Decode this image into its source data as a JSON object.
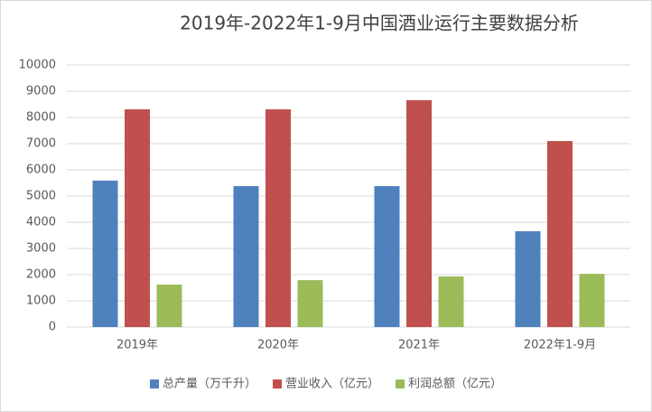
{
  "chart_data": {
    "type": "bar",
    "title": "2019年-2022年1-9月中国酒业运行主要数据分析",
    "categories": [
      "2019年",
      "2020年",
      "2021年",
      "2022年1-9月"
    ],
    "series": [
      {
        "name": "总产量（万千升）",
        "color": "#4f81bd",
        "values": [
          5590,
          5380,
          5380,
          3660
        ]
      },
      {
        "name": "营业收入（亿元）",
        "color": "#c0504d",
        "values": [
          8310,
          8310,
          8660,
          7100
        ]
      },
      {
        "name": "利润总额（亿元）",
        "color": "#9bbb59",
        "values": [
          1620,
          1790,
          1930,
          2030
        ]
      }
    ],
    "ylim": [
      0,
      10000
    ],
    "yticks": [
      0,
      1000,
      2000,
      3000,
      4000,
      5000,
      6000,
      7000,
      8000,
      9000,
      10000
    ],
    "grid": true,
    "legend": "bottom"
  }
}
